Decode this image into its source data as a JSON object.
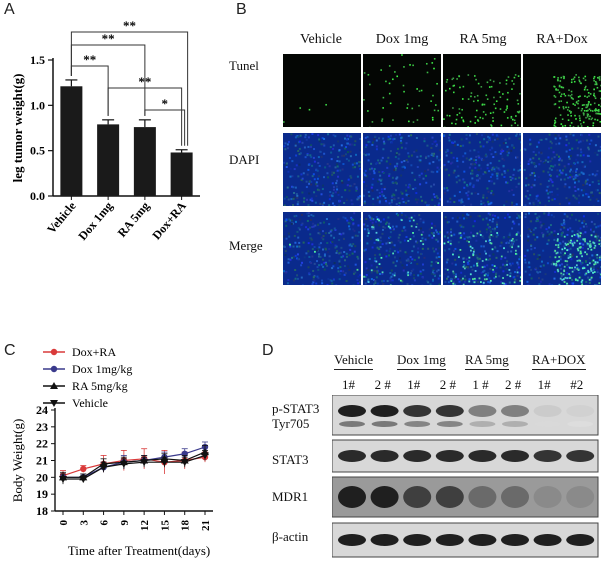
{
  "figure": {
    "panels": {
      "a": "A",
      "b": "B",
      "c": "C",
      "d": "D"
    }
  },
  "chart_data": [
    {
      "type": "bar",
      "panel": "A",
      "categories": [
        "Vehicle",
        "Dox 1mg",
        "RA 5mg",
        "Dox+RA"
      ],
      "values": [
        1.21,
        0.79,
        0.76,
        0.48
      ],
      "errors": [
        0.07,
        0.05,
        0.08,
        0.03
      ],
      "ylabel": "leg tumor weight(g)",
      "ylim": [
        0,
        1.5
      ],
      "yticks": [
        "0.0",
        "0.5",
        "1.0",
        "1.5"
      ],
      "bar_color": "#1a1a1a",
      "significance": [
        {
          "from": 0,
          "to": 1,
          "label": "**"
        },
        {
          "from": 0,
          "to": 2,
          "label": "**"
        },
        {
          "from": 0,
          "to": 3,
          "label": "**"
        },
        {
          "from": 1,
          "to": 3,
          "label": "**"
        },
        {
          "from": 2,
          "to": 3,
          "label": "*"
        }
      ]
    },
    {
      "type": "line",
      "panel": "C",
      "x": [
        0,
        3,
        6,
        9,
        12,
        15,
        18,
        21
      ],
      "xticks": [
        "0",
        "3",
        "6",
        "9",
        "12",
        "15",
        "18",
        "21"
      ],
      "xlabel": "Time after Treatment(days)",
      "ylabel": "Body Weight(g)",
      "ylim": [
        18,
        24
      ],
      "yticks": [
        "18",
        "19",
        "20",
        "21",
        "22",
        "23",
        "24"
      ],
      "legend_position": "top-left",
      "series": [
        {
          "name": "Dox+RA",
          "color": "#d93a3a",
          "marker": "circle",
          "values": [
            20.1,
            20.5,
            20.8,
            21.0,
            21.1,
            20.9,
            21.0,
            21.2
          ],
          "errors": [
            0.3,
            0.2,
            0.5,
            0.6,
            0.6,
            0.7,
            0.5,
            0.3
          ]
        },
        {
          "name": "Dox 1mg/kg",
          "color": "#3a3a8c",
          "marker": "circle",
          "values": [
            20.0,
            20.0,
            20.6,
            20.9,
            21.0,
            21.2,
            21.4,
            21.8
          ],
          "errors": [
            0.2,
            0.2,
            0.3,
            0.4,
            0.3,
            0.3,
            0.3,
            0.3
          ]
        },
        {
          "name": "RA 5mg/kg",
          "color": "#111111",
          "marker": "triangle",
          "values": [
            20.0,
            20.0,
            20.8,
            20.9,
            21.0,
            21.1,
            21.0,
            21.5
          ],
          "errors": [
            0.3,
            0.2,
            0.3,
            0.3,
            0.3,
            0.3,
            0.3,
            0.4
          ]
        },
        {
          "name": "Vehicle",
          "color": "#111111",
          "marker": "triangle-down",
          "values": [
            19.9,
            19.9,
            20.6,
            20.8,
            20.9,
            20.9,
            20.9,
            21.3
          ],
          "errors": [
            0.3,
            0.2,
            0.3,
            0.3,
            0.3,
            0.3,
            0.3,
            0.3
          ]
        }
      ]
    }
  ],
  "panel_b": {
    "columns": [
      "Vehicle",
      "Dox 1mg",
      "RA 5mg",
      "RA+Dox"
    ],
    "rows": [
      "Tunel",
      "DAPI",
      "Merge"
    ],
    "tunel_intensity": [
      0.02,
      0.25,
      0.55,
      0.95
    ]
  },
  "panel_d": {
    "groups": [
      "Vehicle",
      "Dox 1mg",
      "RA 5mg",
      "RA+DOX"
    ],
    "lanes": [
      "1#",
      "2 #",
      "1#",
      "2 #",
      "1 #",
      "2 #",
      "1#",
      "#2"
    ],
    "row_labels": {
      "pstat3": "p-STAT3",
      "tyr": "Tyr705",
      "stat3": "STAT3",
      "mdr1": "MDR1",
      "actin": "β-actin"
    },
    "band_levels": {
      "pstat3": [
        0.95,
        0.95,
        0.85,
        0.85,
        0.5,
        0.5,
        0.15,
        0.12
      ],
      "stat3": [
        0.9,
        0.9,
        0.9,
        0.9,
        0.9,
        0.9,
        0.85,
        0.85
      ],
      "mdr1": [
        0.95,
        0.95,
        0.8,
        0.8,
        0.6,
        0.6,
        0.45,
        0.45
      ],
      "actin": [
        0.95,
        0.95,
        0.95,
        0.95,
        0.95,
        0.95,
        0.95,
        0.95
      ]
    }
  }
}
